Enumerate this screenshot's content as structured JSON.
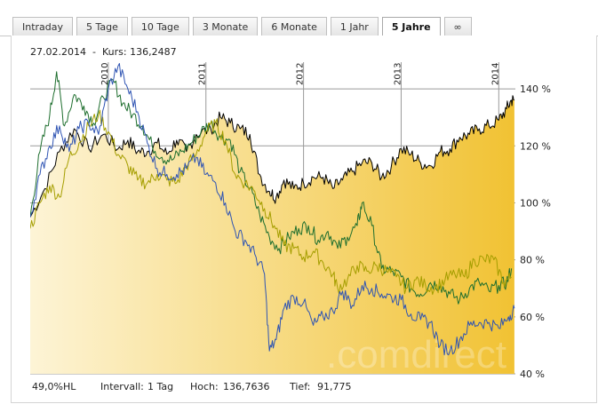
{
  "tabs": [
    {
      "label": "Intraday",
      "active": false
    },
    {
      "label": "5 Tage",
      "active": false
    },
    {
      "label": "10 Tage",
      "active": false
    },
    {
      "label": "3 Monate",
      "active": false
    },
    {
      "label": "6 Monate",
      "active": false
    },
    {
      "label": "1 Jahr",
      "active": false
    },
    {
      "label": "5 Jahre",
      "active": true
    },
    {
      "label": "∞",
      "active": false
    }
  ],
  "header": {
    "date": "27.02.2014",
    "separator": "-",
    "price_label": "Kurs:",
    "price_value": "136,2487"
  },
  "footer": {
    "hl": "49,0%HL",
    "interval_label": "Intervall:",
    "interval_value": "1 Tag",
    "high_label": "Hoch:",
    "high_value": "136,7636",
    "low_label": "Tief:",
    "low_value": "91,775"
  },
  "watermark": ".comdirect",
  "colors": {
    "main_series": "#000000",
    "series_green": "#1e6e2e",
    "series_olive": "#a59e00",
    "series_blue": "#2f54b3",
    "area_light": "#fdf4d6",
    "area_dark": "#f1c233",
    "grid": "#9a9a9a"
  },
  "chart_data": {
    "type": "line",
    "x_tick_labels": [
      "2010",
      "2011",
      "2012",
      "2013",
      "2014"
    ],
    "y_tick_labels": [
      "40 %",
      "60 %",
      "80 %",
      "100 %",
      "120 %",
      "140 %"
    ],
    "y_ticks": [
      40,
      60,
      80,
      100,
      120,
      140
    ],
    "ylim": [
      40,
      150
    ],
    "xlim": [
      2009.2,
      2014.17
    ],
    "series": [
      {
        "color_key": "main_series",
        "filled": true,
        "points": [
          [
            2009.2,
            95
          ],
          [
            2009.35,
            105
          ],
          [
            2009.5,
            118
          ],
          [
            2009.65,
            126
          ],
          [
            2009.8,
            119
          ],
          [
            2009.95,
            124
          ],
          [
            2010.1,
            119
          ],
          [
            2010.2,
            122
          ],
          [
            2010.3,
            118
          ],
          [
            2010.4,
            118
          ],
          [
            2010.5,
            121
          ],
          [
            2010.6,
            117
          ],
          [
            2010.7,
            122
          ],
          [
            2010.8,
            118
          ],
          [
            2010.9,
            124
          ],
          [
            2011.05,
            126
          ],
          [
            2011.15,
            130
          ],
          [
            2011.25,
            128
          ],
          [
            2011.35,
            126
          ],
          [
            2011.45,
            124
          ],
          [
            2011.55,
            110
          ],
          [
            2011.65,
            104
          ],
          [
            2011.72,
            102
          ],
          [
            2011.8,
            108
          ],
          [
            2011.9,
            105
          ],
          [
            2012.0,
            107
          ],
          [
            2012.1,
            109
          ],
          [
            2012.2,
            109
          ],
          [
            2012.3,
            105
          ],
          [
            2012.4,
            108
          ],
          [
            2012.5,
            111
          ],
          [
            2012.6,
            114
          ],
          [
            2012.7,
            114
          ],
          [
            2012.8,
            109
          ],
          [
            2012.9,
            113
          ],
          [
            2013.0,
            119
          ],
          [
            2013.1,
            117
          ],
          [
            2013.2,
            114
          ],
          [
            2013.3,
            113
          ],
          [
            2013.4,
            118
          ],
          [
            2013.5,
            119
          ],
          [
            2013.6,
            123
          ],
          [
            2013.7,
            124
          ],
          [
            2013.8,
            126
          ],
          [
            2013.9,
            127
          ],
          [
            2014.0,
            129
          ],
          [
            2014.08,
            133
          ],
          [
            2014.13,
            136
          ],
          [
            2014.16,
            136
          ]
        ]
      },
      {
        "color_key": "series_green",
        "filled": false,
        "points": [
          [
            2009.2,
            95
          ],
          [
            2009.3,
            118
          ],
          [
            2009.4,
            131
          ],
          [
            2009.47,
            146
          ],
          [
            2009.55,
            127
          ],
          [
            2009.65,
            138
          ],
          [
            2009.75,
            134
          ],
          [
            2009.85,
            128
          ],
          [
            2009.95,
            137
          ],
          [
            2010.05,
            143
          ],
          [
            2010.15,
            135
          ],
          [
            2010.25,
            131
          ],
          [
            2010.35,
            127
          ],
          [
            2010.45,
            120
          ],
          [
            2010.55,
            116
          ],
          [
            2010.65,
            115
          ],
          [
            2010.75,
            118
          ],
          [
            2010.85,
            121
          ],
          [
            2010.95,
            125
          ],
          [
            2011.05,
            128
          ],
          [
            2011.15,
            123
          ],
          [
            2011.25,
            122
          ],
          [
            2011.35,
            111
          ],
          [
            2011.45,
            105
          ],
          [
            2011.55,
            96
          ],
          [
            2011.65,
            88
          ],
          [
            2011.75,
            84
          ],
          [
            2011.85,
            88
          ],
          [
            2011.95,
            91
          ],
          [
            2012.05,
            92
          ],
          [
            2012.15,
            87
          ],
          [
            2012.25,
            90
          ],
          [
            2012.35,
            84
          ],
          [
            2012.45,
            88
          ],
          [
            2012.55,
            92
          ],
          [
            2012.6,
            100
          ],
          [
            2012.7,
            92
          ],
          [
            2012.8,
            77
          ],
          [
            2012.9,
            76
          ],
          [
            2013.0,
            74
          ],
          [
            2013.1,
            70
          ],
          [
            2013.2,
            68
          ],
          [
            2013.3,
            72
          ],
          [
            2013.4,
            71
          ],
          [
            2013.5,
            68
          ],
          [
            2013.6,
            66
          ],
          [
            2013.7,
            70
          ],
          [
            2013.8,
            72
          ],
          [
            2013.9,
            69
          ],
          [
            2014.0,
            71
          ],
          [
            2014.08,
            72
          ],
          [
            2014.13,
            77
          ]
        ]
      },
      {
        "color_key": "series_olive",
        "filled": false,
        "points": [
          [
            2009.2,
            91
          ],
          [
            2009.3,
            100
          ],
          [
            2009.4,
            106
          ],
          [
            2009.5,
            102
          ],
          [
            2009.6,
            116
          ],
          [
            2009.7,
            121
          ],
          [
            2009.8,
            127
          ],
          [
            2009.9,
            131
          ],
          [
            2010.0,
            125
          ],
          [
            2010.1,
            117
          ],
          [
            2010.2,
            113
          ],
          [
            2010.3,
            108
          ],
          [
            2010.4,
            107
          ],
          [
            2010.5,
            110
          ],
          [
            2010.6,
            108
          ],
          [
            2010.7,
            107
          ],
          [
            2010.8,
            113
          ],
          [
            2010.9,
            117
          ],
          [
            2011.0,
            125
          ],
          [
            2011.1,
            128
          ],
          [
            2011.2,
            122
          ],
          [
            2011.3,
            110
          ],
          [
            2011.4,
            107
          ],
          [
            2011.5,
            104
          ],
          [
            2011.6,
            98
          ],
          [
            2011.7,
            92
          ],
          [
            2011.8,
            85
          ],
          [
            2011.9,
            84
          ],
          [
            2012.0,
            81
          ],
          [
            2012.1,
            83
          ],
          [
            2012.2,
            79
          ],
          [
            2012.3,
            75
          ],
          [
            2012.35,
            70
          ],
          [
            2012.45,
            73
          ],
          [
            2012.55,
            78
          ],
          [
            2012.65,
            76
          ],
          [
            2012.75,
            78
          ],
          [
            2012.85,
            76
          ],
          [
            2012.95,
            74
          ],
          [
            2013.05,
            70
          ],
          [
            2013.15,
            73
          ],
          [
            2013.25,
            71
          ],
          [
            2013.35,
            70
          ],
          [
            2013.45,
            73
          ],
          [
            2013.55,
            75
          ],
          [
            2013.65,
            74
          ],
          [
            2013.75,
            80
          ],
          [
            2013.85,
            80
          ],
          [
            2013.95,
            80
          ],
          [
            2014.05,
            72
          ],
          [
            2014.13,
            74
          ]
        ]
      },
      {
        "color_key": "series_blue",
        "filled": false,
        "points": [
          [
            2009.2,
            95
          ],
          [
            2009.3,
            110
          ],
          [
            2009.4,
            120
          ],
          [
            2009.5,
            127
          ],
          [
            2009.6,
            118
          ],
          [
            2009.7,
            126
          ],
          [
            2009.8,
            128
          ],
          [
            2009.9,
            124
          ],
          [
            2010.0,
            140
          ],
          [
            2010.1,
            148
          ],
          [
            2010.2,
            140
          ],
          [
            2010.3,
            132
          ],
          [
            2010.4,
            121
          ],
          [
            2010.5,
            112
          ],
          [
            2010.6,
            110
          ],
          [
            2010.7,
            110
          ],
          [
            2010.8,
            112
          ],
          [
            2010.9,
            116
          ],
          [
            2011.0,
            110
          ],
          [
            2011.1,
            107
          ],
          [
            2011.2,
            100
          ],
          [
            2011.3,
            90
          ],
          [
            2011.4,
            87
          ],
          [
            2011.5,
            82
          ],
          [
            2011.6,
            75
          ],
          [
            2011.65,
            48
          ],
          [
            2011.72,
            52
          ],
          [
            2011.8,
            63
          ],
          [
            2011.9,
            67
          ],
          [
            2012.0,
            65
          ],
          [
            2012.1,
            57
          ],
          [
            2012.2,
            60
          ],
          [
            2012.3,
            62
          ],
          [
            2012.4,
            69
          ],
          [
            2012.5,
            64
          ],
          [
            2012.6,
            71
          ],
          [
            2012.7,
            70
          ],
          [
            2012.8,
            68
          ],
          [
            2012.9,
            67
          ],
          [
            2013.0,
            66
          ],
          [
            2013.1,
            61
          ],
          [
            2013.2,
            59
          ],
          [
            2013.3,
            58
          ],
          [
            2013.4,
            50
          ],
          [
            2013.5,
            48
          ],
          [
            2013.6,
            52
          ],
          [
            2013.7,
            57
          ],
          [
            2013.8,
            58
          ],
          [
            2013.9,
            58
          ],
          [
            2014.0,
            56
          ],
          [
            2014.1,
            60
          ],
          [
            2014.16,
            63
          ]
        ]
      }
    ]
  }
}
